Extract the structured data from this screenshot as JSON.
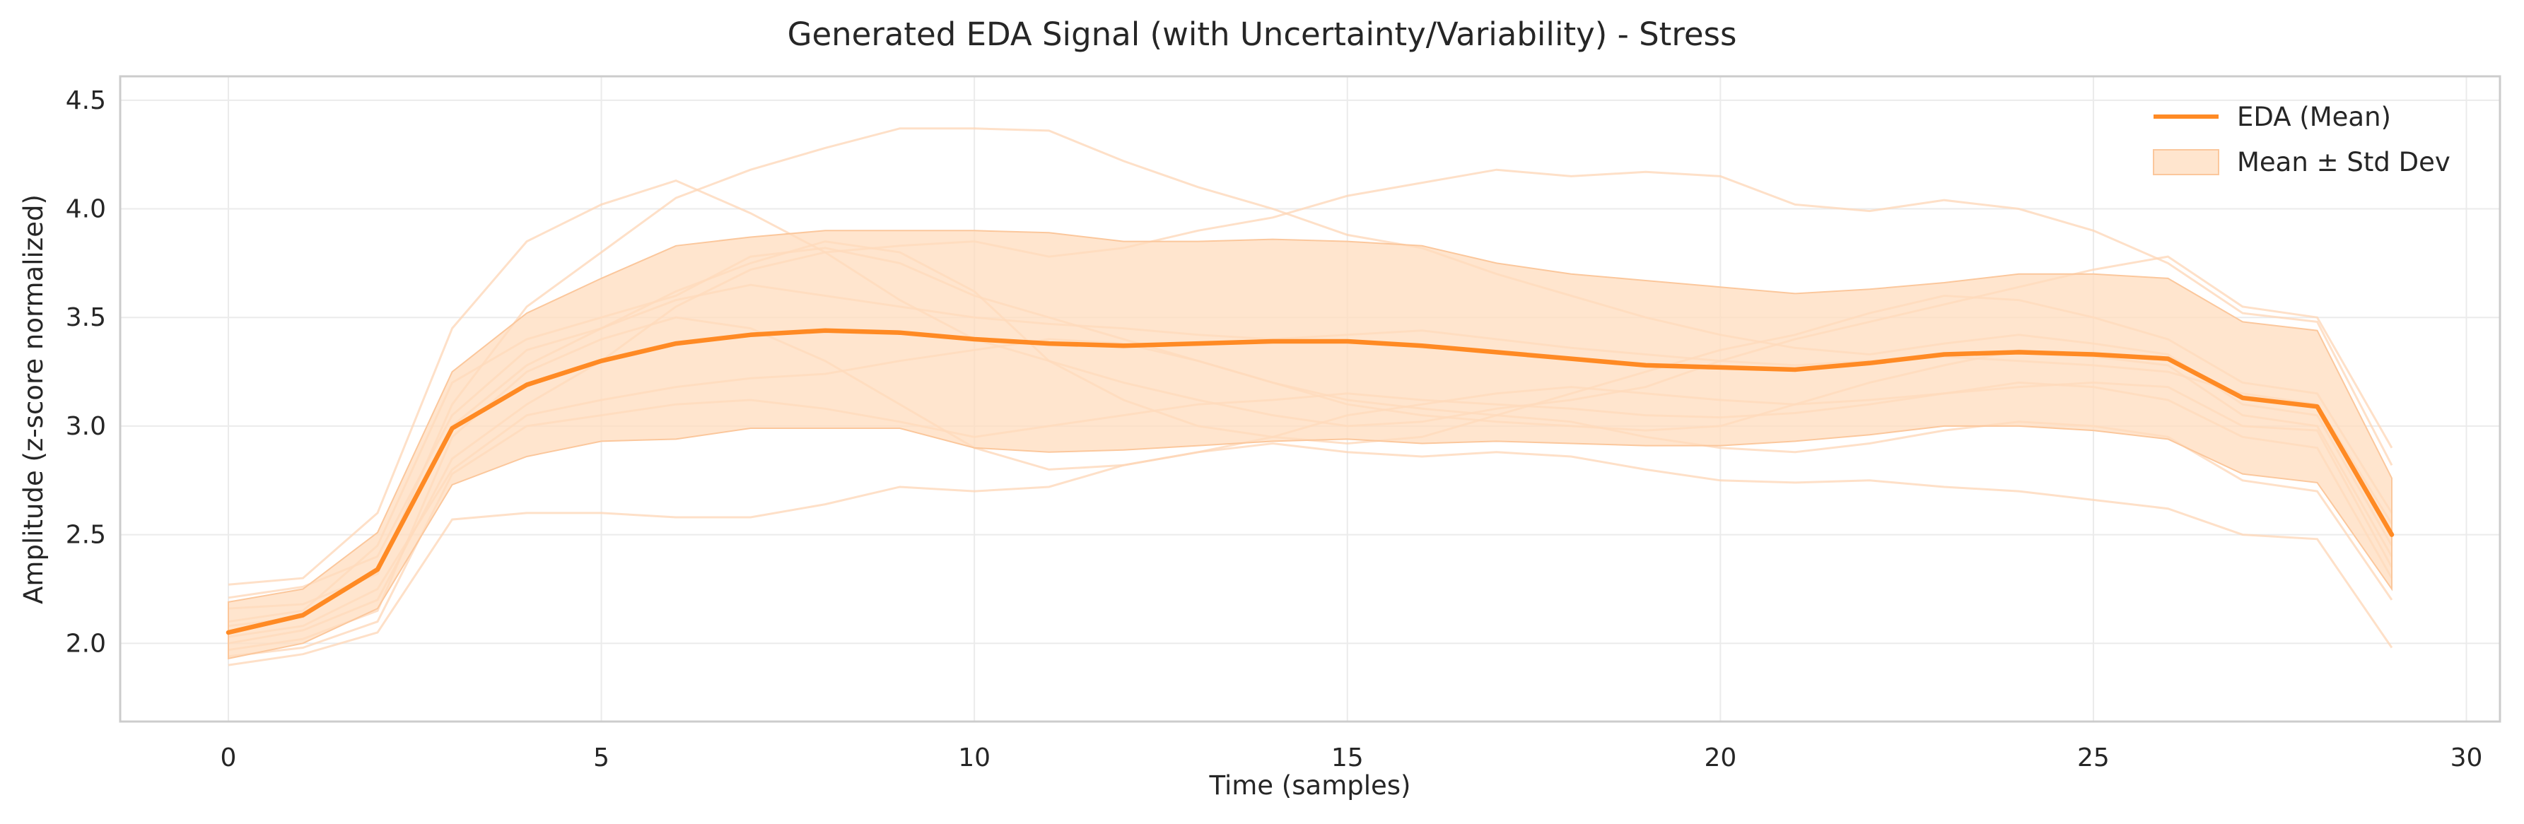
{
  "chart_data": {
    "type": "line",
    "title": "Generated EDA Signal (with Uncertainty/Variability) - Stress",
    "xlabel": "Time (samples)",
    "ylabel": "Amplitude (z-score normalized)",
    "xlim": [
      -1.45,
      30.45
    ],
    "ylim": [
      1.64,
      4.61
    ],
    "xticks": [
      0,
      5,
      10,
      15,
      20,
      25,
      30
    ],
    "yticks": [
      2.0,
      2.5,
      3.0,
      3.5,
      4.0,
      4.5
    ],
    "grid": true,
    "legend_position": "top-right",
    "colors": {
      "mean": "#ff8a24",
      "band": "#ffdcbd",
      "band_edge": "#fbc79c",
      "samples": "#fdd6b5"
    },
    "x": [
      0,
      1,
      2,
      3,
      4,
      5,
      6,
      7,
      8,
      9,
      10,
      11,
      12,
      13,
      14,
      15,
      16,
      17,
      18,
      19,
      20,
      21,
      22,
      23,
      24,
      25,
      26,
      27,
      28,
      29
    ],
    "series": [
      {
        "name": "EDA (Mean)",
        "role": "mean",
        "values": [
          2.05,
          2.13,
          2.34,
          2.99,
          3.19,
          3.3,
          3.38,
          3.42,
          3.44,
          3.43,
          3.4,
          3.38,
          3.37,
          3.38,
          3.39,
          3.39,
          3.37,
          3.34,
          3.31,
          3.28,
          3.27,
          3.26,
          3.29,
          3.33,
          3.34,
          3.33,
          3.31,
          3.13,
          3.09,
          2.5
        ]
      },
      {
        "name": "Mean ± Std Dev",
        "role": "band",
        "upper": [
          2.19,
          2.25,
          2.51,
          3.25,
          3.52,
          3.68,
          3.83,
          3.87,
          3.9,
          3.9,
          3.9,
          3.89,
          3.85,
          3.85,
          3.86,
          3.85,
          3.83,
          3.75,
          3.7,
          3.67,
          3.64,
          3.61,
          3.63,
          3.66,
          3.7,
          3.7,
          3.68,
          3.48,
          3.44,
          2.76
        ],
        "lower": [
          1.93,
          2.0,
          2.16,
          2.73,
          2.86,
          2.93,
          2.94,
          2.99,
          2.99,
          2.99,
          2.9,
          2.88,
          2.89,
          2.91,
          2.93,
          2.94,
          2.92,
          2.93,
          2.92,
          2.91,
          2.91,
          2.93,
          2.96,
          3.0,
          3.0,
          2.98,
          2.94,
          2.78,
          2.74,
          2.25
        ]
      }
    ],
    "sample_traces": [
      [
        2.27,
        2.3,
        2.6,
        3.45,
        3.85,
        4.02,
        4.13,
        3.98,
        3.8,
        3.58,
        3.4,
        3.3,
        3.2,
        3.12,
        3.05,
        3.0,
        3.02,
        3.08,
        3.12,
        3.18,
        3.3,
        3.4,
        3.48,
        3.56,
        3.64,
        3.72,
        3.78,
        3.55,
        3.5,
        2.9
      ],
      [
        2.16,
        2.18,
        2.32,
        3.1,
        3.55,
        3.8,
        4.05,
        4.18,
        4.28,
        4.37,
        4.37,
        4.36,
        4.22,
        4.1,
        4.0,
        3.88,
        3.82,
        3.7,
        3.6,
        3.5,
        3.42,
        3.36,
        3.33,
        3.38,
        3.42,
        3.38,
        3.33,
        3.1,
        3.05,
        2.45
      ],
      [
        2.0,
        2.06,
        2.2,
        2.85,
        3.1,
        3.3,
        3.55,
        3.72,
        3.8,
        3.83,
        3.85,
        3.78,
        3.82,
        3.9,
        3.96,
        4.06,
        4.12,
        4.18,
        4.15,
        4.17,
        4.15,
        4.02,
        3.99,
        4.04,
        4.0,
        3.9,
        3.75,
        3.52,
        3.48,
        2.82
      ],
      [
        1.9,
        1.95,
        2.05,
        2.57,
        2.6,
        2.6,
        2.58,
        2.58,
        2.64,
        2.72,
        2.7,
        2.72,
        2.82,
        2.88,
        2.95,
        3.05,
        3.1,
        3.15,
        3.18,
        3.15,
        3.12,
        3.1,
        3.12,
        3.15,
        3.2,
        3.18,
        3.12,
        2.95,
        2.9,
        2.3
      ],
      [
        2.1,
        2.15,
        2.45,
        3.2,
        3.4,
        3.5,
        3.6,
        3.78,
        3.82,
        3.75,
        3.6,
        3.5,
        3.4,
        3.3,
        3.2,
        3.1,
        3.05,
        3.02,
        3.0,
        2.98,
        3.0,
        3.1,
        3.2,
        3.28,
        3.35,
        3.32,
        3.28,
        3.05,
        3.0,
        2.4
      ],
      [
        2.03,
        2.08,
        2.25,
        2.8,
        3.05,
        3.12,
        3.18,
        3.22,
        3.24,
        3.3,
        3.35,
        3.4,
        3.38,
        3.3,
        3.2,
        3.12,
        3.08,
        3.05,
        3.02,
        2.95,
        2.9,
        2.88,
        2.92,
        2.98,
        3.02,
        3.0,
        2.95,
        2.75,
        2.7,
        2.2
      ],
      [
        1.97,
        2.02,
        2.15,
        2.95,
        3.25,
        3.4,
        3.5,
        3.45,
        3.3,
        3.1,
        2.9,
        2.8,
        2.82,
        2.88,
        2.92,
        2.88,
        2.86,
        2.88,
        2.86,
        2.8,
        2.75,
        2.74,
        2.75,
        2.72,
        2.7,
        2.66,
        2.62,
        2.5,
        2.48,
        1.98
      ],
      [
        2.21,
        2.26,
        2.4,
        3.05,
        3.35,
        3.45,
        3.58,
        3.65,
        3.6,
        3.55,
        3.5,
        3.47,
        3.45,
        3.42,
        3.4,
        3.42,
        3.44,
        3.4,
        3.36,
        3.33,
        3.3,
        3.28,
        3.3,
        3.32,
        3.3,
        3.28,
        3.25,
        3.15,
        3.1,
        2.55
      ],
      [
        1.94,
        1.98,
        2.1,
        2.78,
        3.0,
        3.05,
        3.1,
        3.12,
        3.08,
        3.02,
        2.95,
        3.0,
        3.05,
        3.1,
        3.12,
        3.15,
        3.12,
        3.1,
        3.08,
        3.05,
        3.04,
        3.06,
        3.1,
        3.15,
        3.18,
        3.2,
        3.18,
        3.0,
        2.98,
        2.35
      ],
      [
        2.08,
        2.12,
        2.35,
        3.0,
        3.28,
        3.45,
        3.62,
        3.75,
        3.85,
        3.8,
        3.62,
        3.3,
        3.12,
        3.0,
        2.95,
        2.92,
        2.95,
        3.05,
        3.15,
        3.25,
        3.35,
        3.42,
        3.52,
        3.6,
        3.58,
        3.5,
        3.4,
        3.2,
        3.15,
        2.6
      ]
    ]
  }
}
